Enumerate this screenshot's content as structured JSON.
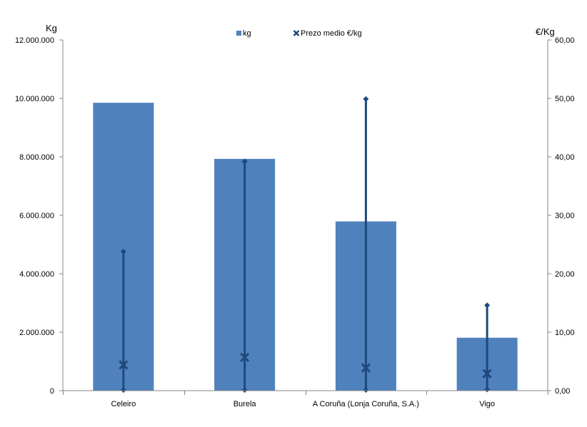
{
  "colors": {
    "bar": "#4F81BD",
    "price_line": "#1F497D",
    "axis": "#868686"
  },
  "chart_data": {
    "type": "bar",
    "categories": [
      "Celeiro",
      "Burela",
      "A Coruña (Lonja Coruña, S.A.)",
      "Vigo"
    ],
    "left_axis": {
      "unit_label": "Kg",
      "ylim": [
        0,
        12000000
      ],
      "ticks": [
        "0",
        "2.000.000",
        "4.000.000",
        "6.000.000",
        "8.000.000",
        "10.000.000",
        "12.000.000"
      ]
    },
    "right_axis": {
      "unit_label": "€/Kg",
      "ylim": [
        0,
        60
      ],
      "ticks": [
        "0,00",
        "10,00",
        "20,00",
        "30,00",
        "40,00",
        "50,00",
        "60,00"
      ]
    },
    "series": [
      {
        "name": "kg",
        "type": "bar",
        "axis": "left",
        "values": [
          9850000,
          7930000,
          5790000,
          1810000
        ]
      },
      {
        "name": "Prezo medio €/kg",
        "type": "high-low-marker",
        "axis": "right",
        "values": [
          4.4,
          5.7,
          3.9,
          2.9
        ],
        "high": [
          23.8,
          39.2,
          49.9,
          14.6
        ],
        "low": [
          0.1,
          0.1,
          0.1,
          0.2
        ]
      }
    ],
    "legend_position": "top-center",
    "grid": false
  }
}
